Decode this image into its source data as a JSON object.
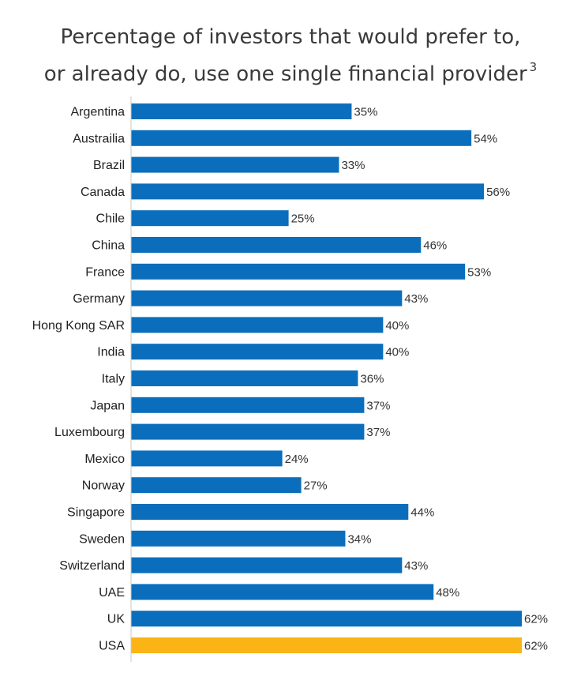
{
  "chart_data": {
    "type": "bar",
    "orientation": "horizontal",
    "title_line1": "Percentage of investors that would prefer to,",
    "title_line2": "or already do, use one single financial provider",
    "title_footnote": "3",
    "categories": [
      "Argentina",
      "Austrailia",
      "Brazil",
      "Canada",
      "Chile",
      "China",
      "France",
      "Germany",
      "Hong Kong SAR",
      "India",
      "Italy",
      "Japan",
      "Luxembourg",
      "Mexico",
      "Norway",
      "Singapore",
      "Sweden",
      "Switzerland",
      "UAE",
      "UK",
      "USA"
    ],
    "values": [
      35,
      54,
      33,
      56,
      25,
      46,
      53,
      43,
      40,
      40,
      36,
      37,
      37,
      24,
      27,
      44,
      34,
      43,
      48,
      62,
      62
    ],
    "value_labels": [
      "35%",
      "54%",
      "33%",
      "56%",
      "25%",
      "46%",
      "53%",
      "43%",
      "40%",
      "40%",
      "36%",
      "37%",
      "37%",
      "24%",
      "27%",
      "44%",
      "34%",
      "43%",
      "48%",
      "62%",
      "62%"
    ],
    "unit": "%",
    "xlim": [
      0,
      62
    ],
    "grid": false,
    "colors": {
      "default": "#0a6ebd",
      "highlight": "#fbb416",
      "axis": "#c8c8c8"
    },
    "highlight_category": "USA"
  }
}
